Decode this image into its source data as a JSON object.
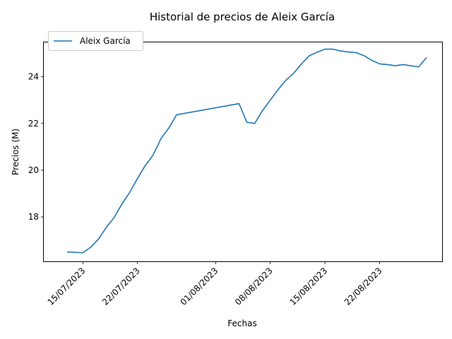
{
  "chart_data": {
    "type": "line",
    "title": "Historial de precios de Aleix García",
    "xlabel": "Fechas",
    "ylabel": "Precios (M)",
    "x_range": [
      "2023-07-10",
      "2023-08-30"
    ],
    "ylim": [
      16.1,
      25.5
    ],
    "grid": false,
    "legend_position": "upper-left",
    "x_ticks": [
      {
        "date": "2023-07-15",
        "label": "15/07/2023"
      },
      {
        "date": "2023-07-22",
        "label": "22/07/2023"
      },
      {
        "date": "2023-08-01",
        "label": "01/08/2023"
      },
      {
        "date": "2023-08-08",
        "label": "08/08/2023"
      },
      {
        "date": "2023-08-15",
        "label": "15/08/2023"
      },
      {
        "date": "2023-08-22",
        "label": "22/08/2023"
      }
    ],
    "y_ticks": [
      18,
      20,
      22,
      24
    ],
    "series": [
      {
        "name": "Aleix García",
        "color": "#1f77b4",
        "points": [
          [
            "2023-07-13",
            16.5
          ],
          [
            "2023-07-15",
            16.47
          ],
          [
            "2023-07-16",
            16.7
          ],
          [
            "2023-07-17",
            17.05
          ],
          [
            "2023-07-18",
            17.55
          ],
          [
            "2023-07-19",
            17.97
          ],
          [
            "2023-07-20",
            18.55
          ],
          [
            "2023-07-21",
            19.05
          ],
          [
            "2023-07-22",
            19.65
          ],
          [
            "2023-07-23",
            20.2
          ],
          [
            "2023-07-24",
            20.65
          ],
          [
            "2023-07-25",
            21.35
          ],
          [
            "2023-07-26",
            21.8
          ],
          [
            "2023-07-27",
            22.37
          ],
          [
            "2023-08-04",
            22.85
          ],
          [
            "2023-08-05",
            22.05
          ],
          [
            "2023-08-06",
            22.0
          ],
          [
            "2023-08-07",
            22.55
          ],
          [
            "2023-08-08",
            23.0
          ],
          [
            "2023-08-09",
            23.45
          ],
          [
            "2023-08-10",
            23.85
          ],
          [
            "2023-08-11",
            24.15
          ],
          [
            "2023-08-12",
            24.55
          ],
          [
            "2023-08-13",
            24.9
          ],
          [
            "2023-08-14",
            25.05
          ],
          [
            "2023-08-15",
            25.18
          ],
          [
            "2023-08-16",
            25.18
          ],
          [
            "2023-08-17",
            25.1
          ],
          [
            "2023-08-18",
            25.06
          ],
          [
            "2023-08-19",
            25.03
          ],
          [
            "2023-08-20",
            24.9
          ],
          [
            "2023-08-21",
            24.7
          ],
          [
            "2023-08-22",
            24.55
          ],
          [
            "2023-08-23",
            24.52
          ],
          [
            "2023-08-24",
            24.47
          ],
          [
            "2023-08-25",
            24.52
          ],
          [
            "2023-08-26",
            24.47
          ],
          [
            "2023-08-27",
            24.42
          ],
          [
            "2023-08-28",
            24.82
          ]
        ]
      }
    ]
  }
}
